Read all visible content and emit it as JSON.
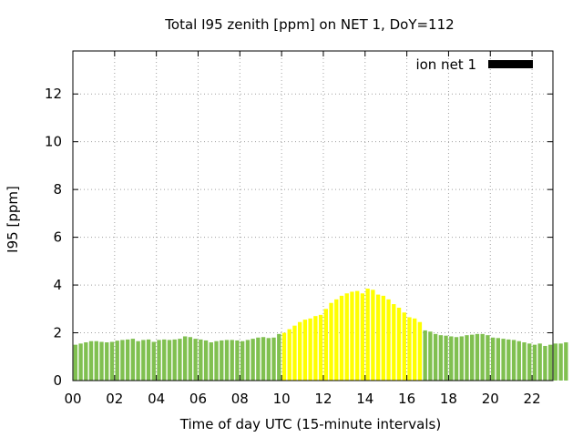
{
  "chart_data": {
    "type": "bar",
    "title": "Total I95 zenith [ppm] on NET 1, DoY=112",
    "xlabel": "Time of day UTC (15-minute intervals)",
    "ylabel": "I95 [ppm]",
    "xlim": [
      0,
      23
    ],
    "ylim": [
      0,
      13.8
    ],
    "xticks": [
      "00",
      "02",
      "04",
      "06",
      "08",
      "10",
      "12",
      "14",
      "16",
      "18",
      "20",
      "22"
    ],
    "yticks": [
      "0",
      "2",
      "4",
      "6",
      "8",
      "10",
      "12"
    ],
    "grid": true,
    "legend": {
      "position": "top-right",
      "label": "ion net 1",
      "color": "#000000"
    },
    "colors": {
      "low": "#80c050",
      "high": "#ffff00"
    },
    "interval_hours": 0.25,
    "highlight_range_hours": [
      10,
      16.75
    ],
    "values": [
      1.5,
      1.55,
      1.6,
      1.65,
      1.65,
      1.62,
      1.6,
      1.62,
      1.67,
      1.7,
      1.72,
      1.75,
      1.65,
      1.7,
      1.72,
      1.62,
      1.7,
      1.72,
      1.7,
      1.72,
      1.75,
      1.85,
      1.82,
      1.75,
      1.72,
      1.68,
      1.6,
      1.65,
      1.68,
      1.7,
      1.7,
      1.68,
      1.65,
      1.7,
      1.75,
      1.8,
      1.82,
      1.78,
      1.8,
      1.95,
      2.0,
      2.15,
      2.3,
      2.45,
      2.55,
      2.6,
      2.7,
      2.75,
      3.0,
      3.25,
      3.4,
      3.55,
      3.65,
      3.72,
      3.75,
      3.65,
      3.85,
      3.8,
      3.6,
      3.55,
      3.4,
      3.2,
      3.05,
      2.85,
      2.65,
      2.6,
      2.45,
      2.1,
      2.05,
      1.95,
      1.9,
      1.88,
      1.85,
      1.82,
      1.85,
      1.9,
      1.92,
      1.95,
      1.95,
      1.9,
      1.8,
      1.78,
      1.75,
      1.72,
      1.7,
      1.65,
      1.6,
      1.55,
      1.5,
      1.55,
      1.45,
      1.5,
      1.55,
      1.55,
      1.6
    ]
  }
}
